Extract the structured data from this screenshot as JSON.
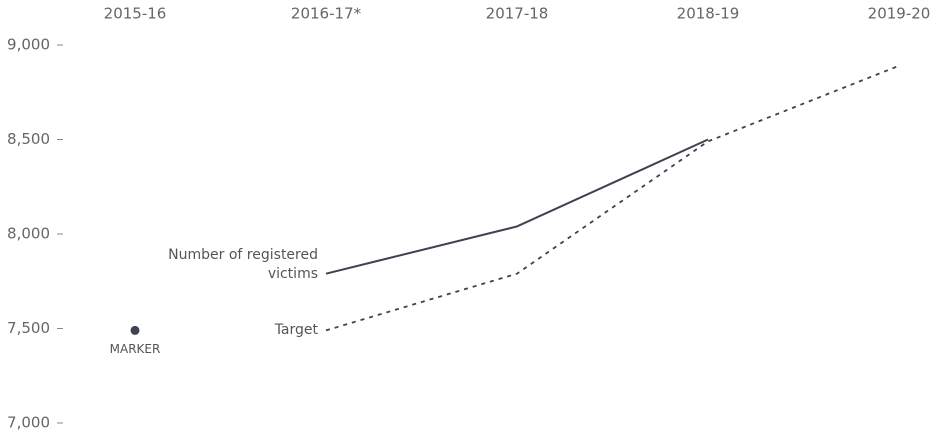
{
  "chart_data": {
    "type": "line",
    "categories": [
      "2015-16",
      "2016-17*",
      "2017-18",
      "2018-19",
      "2019-20"
    ],
    "ylim": [
      7000,
      9000
    ],
    "yticks": [
      {
        "value": 7000,
        "label": "7,000"
      },
      {
        "value": 7500,
        "label": "7,500"
      },
      {
        "value": 8000,
        "label": "8,000"
      },
      {
        "value": 8500,
        "label": "8,500"
      },
      {
        "value": 9000,
        "label": "9,000"
      }
    ],
    "series": [
      {
        "name": "Number of registered victims",
        "color": "#3d4350",
        "style": "solid",
        "values": [
          null,
          7790,
          8040,
          8500,
          null
        ]
      },
      {
        "name": "Target",
        "color": "#3d4350",
        "style": "dashed",
        "values": [
          null,
          7490,
          7790,
          8490,
          8890
        ]
      },
      {
        "name": "MARKER",
        "color": "#3d4350",
        "style": "point",
        "values": [
          7490,
          null,
          null,
          null,
          null
        ]
      }
    ]
  }
}
